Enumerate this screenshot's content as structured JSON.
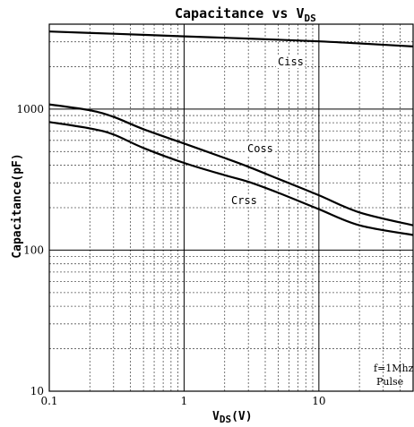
{
  "chart_data": {
    "type": "line",
    "title_main": "Capacitance vs V",
    "title_sub": "DS",
    "xlabel_main": "V",
    "xlabel_sub": "DS",
    "xlabel_unit": "(V)",
    "ylabel": "Capacitance(pF)",
    "x_scale": "log",
    "y_scale": "log",
    "xlim": [
      0.1,
      50
    ],
    "ylim": [
      10,
      4000
    ],
    "x_tick_labels": [
      "0.1",
      "1",
      "10"
    ],
    "y_tick_labels": [
      "10",
      "100",
      "1000"
    ],
    "grid": true,
    "annotations": [
      "f=1Mhz",
      "Pulse"
    ],
    "series": [
      {
        "name": "Ciss",
        "x": [
          0.1,
          0.3,
          1,
          3,
          10,
          20,
          50
        ],
        "y": [
          3550,
          3420,
          3280,
          3160,
          3020,
          2920,
          2780
        ]
      },
      {
        "name": "Coss",
        "x": [
          0.1,
          0.2,
          0.3,
          0.5,
          1,
          2,
          3,
          5,
          10,
          20,
          50
        ],
        "y": [
          1080,
          980,
          880,
          720,
          570,
          450,
          390,
          320,
          245,
          185,
          150
        ]
      },
      {
        "name": "Crss",
        "x": [
          0.1,
          0.2,
          0.3,
          0.5,
          1,
          2,
          3,
          5,
          10,
          20,
          50
        ],
        "y": [
          810,
          730,
          660,
          530,
          415,
          340,
          305,
          255,
          195,
          150,
          128
        ]
      }
    ]
  }
}
